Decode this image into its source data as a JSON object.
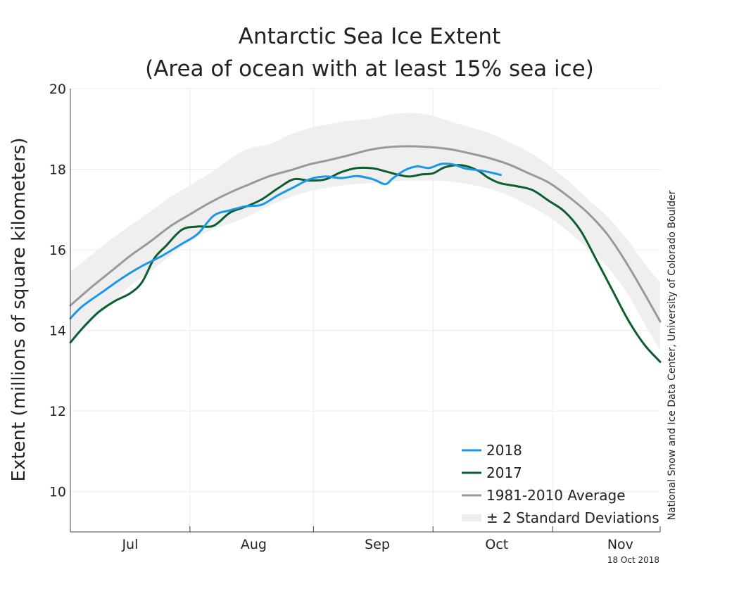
{
  "chart_data": {
    "type": "line",
    "title_line1": "Antarctic Sea Ice Extent",
    "title_line2": "(Area of ocean with at least 15% sea ice)",
    "ylabel": "Extent (millions of square kilometers)",
    "xlabel": "",
    "ylim": [
      9,
      20
    ],
    "yticks": [
      10,
      12,
      14,
      16,
      18,
      20
    ],
    "x_unit": "day of year",
    "xlim": [
      167,
      315
    ],
    "month_labels": [
      "Jul",
      "Aug",
      "Sep",
      "Oct",
      "Nov"
    ],
    "month_label_days": [
      182,
      213,
      244,
      274,
      305
    ],
    "month_boundaries": [
      167,
      197,
      228,
      258,
      288,
      315
    ],
    "grid": true,
    "legend_position": "bottom-right",
    "series": [
      {
        "name": "2018",
        "color": "#1a97e6",
        "x": [
          167,
          170,
          175,
          180,
          185,
          190,
          195,
          199,
          203,
          207,
          211,
          215,
          219,
          223,
          227,
          231,
          235,
          239,
          243,
          246,
          248,
          251,
          254,
          257,
          260,
          263,
          266,
          269,
          272,
          275
        ],
        "y": [
          14.3,
          14.6,
          14.95,
          15.3,
          15.6,
          15.85,
          16.15,
          16.4,
          16.85,
          16.98,
          17.08,
          17.12,
          17.35,
          17.55,
          17.75,
          17.82,
          17.78,
          17.83,
          17.75,
          17.63,
          17.78,
          17.98,
          18.07,
          18.03,
          18.13,
          18.12,
          18.02,
          17.98,
          17.93,
          17.86
        ]
      },
      {
        "name": "2017",
        "color": "#0b5e2e",
        "x": [
          167,
          170,
          174,
          178,
          182,
          185,
          188,
          191,
          195,
          199,
          203,
          207,
          211,
          215,
          219,
          223,
          227,
          231,
          235,
          239,
          243,
          246,
          249,
          252,
          255,
          258,
          261,
          265,
          269,
          272,
          275,
          279,
          283,
          287,
          291,
          295,
          299,
          303,
          307,
          311,
          315
        ],
        "y": [
          13.7,
          14.05,
          14.45,
          14.72,
          14.92,
          15.2,
          15.78,
          16.1,
          16.5,
          16.58,
          16.6,
          16.92,
          17.07,
          17.25,
          17.52,
          17.75,
          17.72,
          17.75,
          17.93,
          18.03,
          18.02,
          17.95,
          17.87,
          17.82,
          17.87,
          17.9,
          18.05,
          18.1,
          17.98,
          17.78,
          17.65,
          17.58,
          17.48,
          17.22,
          16.95,
          16.48,
          15.75,
          15.0,
          14.25,
          13.65,
          13.22
        ]
      },
      {
        "name": "1981-2010 Average",
        "color": "#999999",
        "x": [
          167,
          172,
          177,
          182,
          187,
          192,
          197,
          202,
          207,
          212,
          217,
          222,
          227,
          232,
          237,
          242,
          247,
          252,
          257,
          262,
          267,
          272,
          277,
          282,
          287,
          292,
          297,
          302,
          307,
          312,
          315
        ],
        "y": [
          14.62,
          15.05,
          15.45,
          15.85,
          16.2,
          16.58,
          16.88,
          17.17,
          17.42,
          17.63,
          17.83,
          17.97,
          18.12,
          18.23,
          18.35,
          18.48,
          18.55,
          18.57,
          18.55,
          18.5,
          18.4,
          18.28,
          18.12,
          17.9,
          17.67,
          17.32,
          16.9,
          16.35,
          15.6,
          14.75,
          14.22
        ]
      }
    ],
    "band": {
      "name": "± 2 Standard Deviations",
      "color": "#efefef",
      "x": [
        167,
        172,
        177,
        182,
        187,
        192,
        197,
        202,
        207,
        212,
        217,
        222,
        227,
        232,
        237,
        242,
        247,
        252,
        257,
        262,
        267,
        272,
        277,
        282,
        287,
        292,
        297,
        302,
        307,
        312,
        315
      ],
      "upper": [
        15.45,
        15.85,
        16.25,
        16.6,
        16.95,
        17.3,
        17.6,
        17.9,
        18.25,
        18.52,
        18.62,
        18.85,
        19.02,
        19.12,
        19.2,
        19.25,
        19.35,
        19.4,
        19.35,
        19.2,
        19.05,
        18.9,
        18.68,
        18.43,
        18.1,
        17.7,
        17.25,
        16.8,
        16.22,
        15.55,
        15.2
      ],
      "lower": [
        13.78,
        14.2,
        14.65,
        15.1,
        15.45,
        15.85,
        16.2,
        16.48,
        16.65,
        16.85,
        17.1,
        17.3,
        17.45,
        17.55,
        17.62,
        17.65,
        17.7,
        17.72,
        17.72,
        17.7,
        17.63,
        17.52,
        17.35,
        17.1,
        16.82,
        16.45,
        16.02,
        15.55,
        14.88,
        14.0,
        13.5
      ]
    },
    "credit": "National Snow and Ice Data Center, University of Colorado Boulder",
    "date_stamp": "18 Oct 2018"
  }
}
